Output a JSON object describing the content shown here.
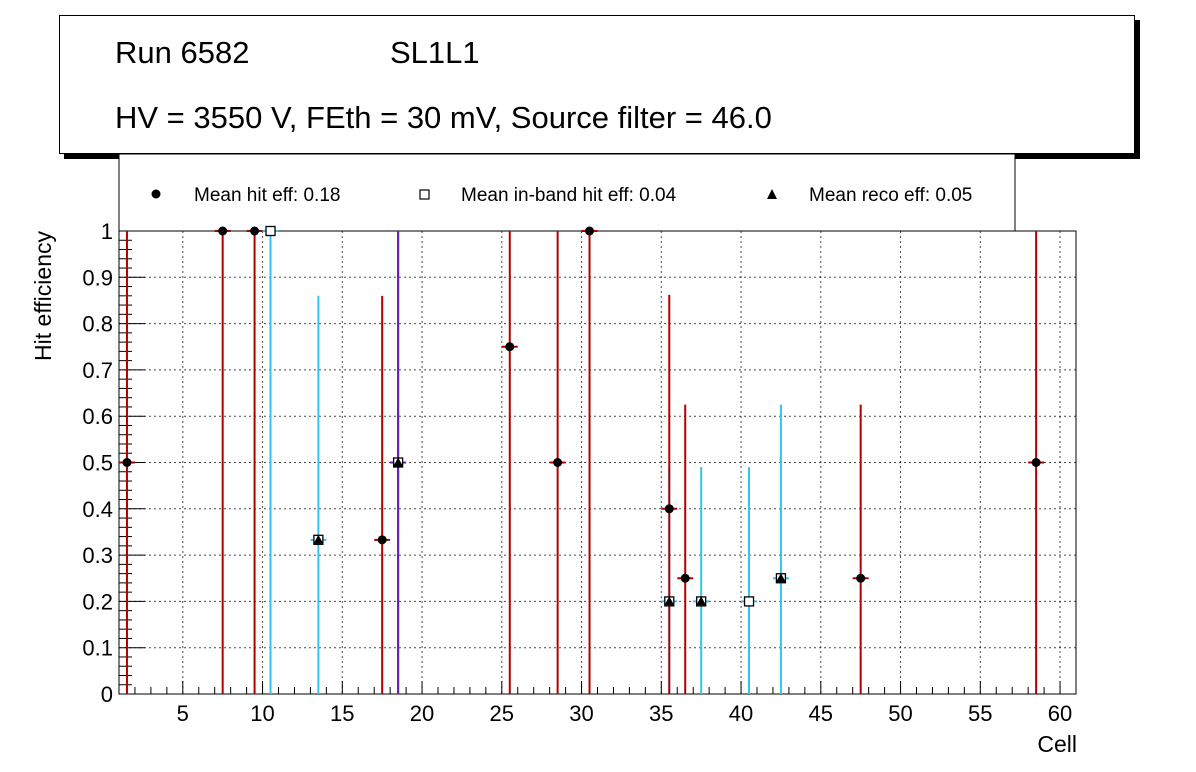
{
  "title_box": {
    "run": "Run 6582",
    "layer": "SL1L1",
    "conditions": "HV = 3550 V, FEth = 30 mV, Source filter = 46.0"
  },
  "legend": {
    "hit": "Mean hit  eff: 0.18",
    "inband": "Mean in-band hit eff: 0.04",
    "reco": "Mean reco eff: 0.05"
  },
  "colors": {
    "hit_error": "#b00000",
    "inband_error": "#33c3f0",
    "overlap_error": "#6a1fb0",
    "marker": "#000000",
    "grid": "#000000"
  },
  "chart_data": {
    "type": "scatter",
    "xlabel": "Cell",
    "ylabel": "Hit efficiency",
    "xlim": [
      1,
      61
    ],
    "ylim": [
      0,
      1
    ],
    "grid": true,
    "legend_position": "top",
    "x_ticks": [
      5,
      10,
      15,
      20,
      25,
      30,
      35,
      40,
      45,
      50,
      55,
      60
    ],
    "y_ticks": [
      0,
      0.1,
      0.2,
      0.3,
      0.4,
      0.5,
      0.6,
      0.7,
      0.8,
      0.9,
      1
    ],
    "x_tick_labels": [
      "5",
      "10",
      "15",
      "20",
      "25",
      "30",
      "35",
      "40",
      "45",
      "50",
      "55",
      "60"
    ],
    "y_tick_labels": [
      "0",
      "0.1",
      "0.2",
      "0.3",
      "0.4",
      "0.5",
      "0.6",
      "0.7",
      "0.8",
      "0.9",
      "1"
    ],
    "series": [
      {
        "name": "Mean hit eff",
        "marker": "circle",
        "points": [
          {
            "x": 1.5,
            "y": 0.5,
            "err_low": 0.5,
            "err_high": 0.5
          },
          {
            "x": 7.5,
            "y": 1.0,
            "err_low": 1.0,
            "err_high": 0.0
          },
          {
            "x": 9.5,
            "y": 1.0,
            "err_low": 1.0,
            "err_high": 0.0
          },
          {
            "x": 10.5,
            "y": 1.0,
            "err_low": 0.0,
            "err_high": 0.0
          },
          {
            "x": 17.5,
            "y": 0.333,
            "err_low": 0.333,
            "err_high": 0.527
          },
          {
            "x": 18.5,
            "y": 0.5,
            "err_low": 0.5,
            "err_high": 0.5
          },
          {
            "x": 25.5,
            "y": 0.75,
            "err_low": 0.75,
            "err_high": 0.25
          },
          {
            "x": 28.5,
            "y": 0.5,
            "err_low": 0.5,
            "err_high": 0.5
          },
          {
            "x": 30.5,
            "y": 1.0,
            "err_low": 1.0,
            "err_high": 0.0
          },
          {
            "x": 35.5,
            "y": 0.4,
            "err_low": 0.4,
            "err_high": 0.462
          },
          {
            "x": 36.5,
            "y": 0.25,
            "err_low": 0.25,
            "err_high": 0.375
          },
          {
            "x": 37.5,
            "y": 0.2,
            "err_low": 0.0,
            "err_high": 0.0
          },
          {
            "x": 40.5,
            "y": 0.2,
            "err_low": 0.0,
            "err_high": 0.0
          },
          {
            "x": 42.5,
            "y": 0.25,
            "err_low": 0.0,
            "err_high": 0.0
          },
          {
            "x": 47.5,
            "y": 0.25,
            "err_low": 0.25,
            "err_high": 0.375
          },
          {
            "x": 58.5,
            "y": 0.5,
            "err_low": 0.5,
            "err_high": 0.5
          }
        ]
      },
      {
        "name": "Mean in-band hit eff",
        "marker": "open-square",
        "points": [
          {
            "x": 10.5,
            "y": 1.0,
            "err_low": 1.0,
            "err_high": 0.0
          },
          {
            "x": 13.5,
            "y": 0.333,
            "err_low": 0.333,
            "err_high": 0.527
          },
          {
            "x": 18.5,
            "y": 0.5,
            "err_low": 0.5,
            "err_high": 0.5
          },
          {
            "x": 35.5,
            "y": 0.2,
            "err_low": 0.2,
            "err_high": 0.29
          },
          {
            "x": 37.5,
            "y": 0.2,
            "err_low": 0.2,
            "err_high": 0.29
          },
          {
            "x": 40.5,
            "y": 0.2,
            "err_low": 0.2,
            "err_high": 0.29
          },
          {
            "x": 42.5,
            "y": 0.25,
            "err_low": 0.25,
            "err_high": 0.375
          }
        ]
      },
      {
        "name": "Mean reco eff",
        "marker": "triangle",
        "points": [
          {
            "x": 13.5,
            "y": 0.333
          },
          {
            "x": 18.5,
            "y": 0.5
          },
          {
            "x": 35.5,
            "y": 0.2
          },
          {
            "x": 37.5,
            "y": 0.2
          },
          {
            "x": 42.5,
            "y": 0.25
          }
        ]
      }
    ]
  }
}
